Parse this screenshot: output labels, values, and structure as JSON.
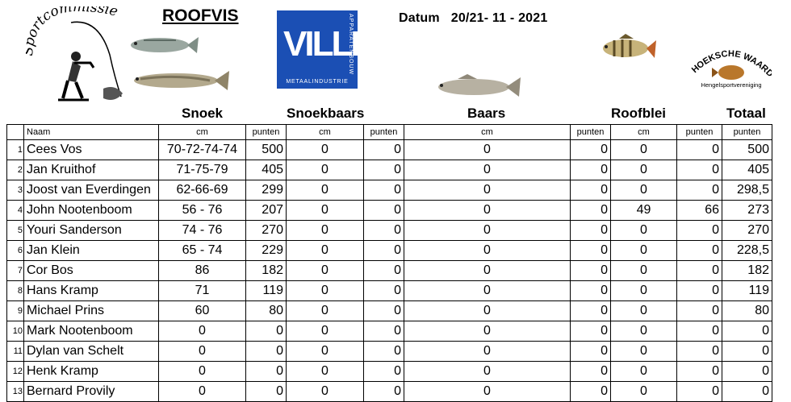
{
  "header": {
    "title": "ROOFVIS",
    "datum_label": "Datum",
    "datum_value": "20/21- 11 - 2021",
    "logo_left_text": "Sportcommissie",
    "ville_logo": {
      "name": "VILLE",
      "side_text": "APPARATENBOUW",
      "bottom_text": "METAALINDUSTRIE",
      "color": "#1b4fb4"
    },
    "hw_logo": {
      "name": "HOEKSCHE WAARD",
      "sub": "Hengelsportvereniging"
    }
  },
  "sections": {
    "snoek": "Snoek",
    "snoekbaars": "Snoekbaars",
    "baars": "Baars",
    "roofblei": "Roofblei",
    "totaal": "Totaal"
  },
  "columns": {
    "naam": "Naam",
    "cm": "cm",
    "punten": "punten"
  },
  "rows": [
    {
      "rank": "1",
      "name": "Cees Vos",
      "snoek_cm": "70-72-74-74",
      "snoek_pt": "500",
      "sb_cm": "0",
      "sb_pt": "0",
      "baars_cm": "0",
      "baars_pt": "0",
      "rb_cm": "0",
      "rb_pt": "0",
      "totaal": "500"
    },
    {
      "rank": "2",
      "name": "Jan Kruithof",
      "snoek_cm": "71-75-79",
      "snoek_pt": "405",
      "sb_cm": "0",
      "sb_pt": "0",
      "baars_cm": "0",
      "baars_pt": "0",
      "rb_cm": "0",
      "rb_pt": "0",
      "totaal": "405"
    },
    {
      "rank": "3",
      "name": "Joost van Everdingen",
      "snoek_cm": "62-66-69",
      "snoek_pt": "299",
      "sb_cm": "0",
      "sb_pt": "0",
      "baars_cm": "0",
      "baars_pt": "0",
      "rb_cm": "0",
      "rb_pt": "0",
      "totaal": "298,5"
    },
    {
      "rank": "4",
      "name": "John Nootenboom",
      "snoek_cm": "56 - 76",
      "snoek_pt": "207",
      "sb_cm": "0",
      "sb_pt": "0",
      "baars_cm": "0",
      "baars_pt": "0",
      "rb_cm": "49",
      "rb_pt": "66",
      "totaal": "273"
    },
    {
      "rank": "5",
      "name": "Youri Sanderson",
      "snoek_cm": "74 - 76",
      "snoek_pt": "270",
      "sb_cm": "0",
      "sb_pt": "0",
      "baars_cm": "0",
      "baars_pt": "0",
      "rb_cm": "0",
      "rb_pt": "0",
      "totaal": "270"
    },
    {
      "rank": "6",
      "name": "Jan Klein",
      "snoek_cm": "65 - 74",
      "snoek_pt": "229",
      "sb_cm": "0",
      "sb_pt": "0",
      "baars_cm": "0",
      "baars_pt": "0",
      "rb_cm": "0",
      "rb_pt": "0",
      "totaal": "228,5"
    },
    {
      "rank": "7",
      "name": "Cor Bos",
      "snoek_cm": "86",
      "snoek_pt": "182",
      "sb_cm": "0",
      "sb_pt": "0",
      "baars_cm": "0",
      "baars_pt": "0",
      "rb_cm": "0",
      "rb_pt": "0",
      "totaal": "182"
    },
    {
      "rank": "8",
      "name": "Hans Kramp",
      "snoek_cm": "71",
      "snoek_pt": "119",
      "sb_cm": "0",
      "sb_pt": "0",
      "baars_cm": "0",
      "baars_pt": "0",
      "rb_cm": "0",
      "rb_pt": "0",
      "totaal": "119"
    },
    {
      "rank": "9",
      "name": "Michael Prins",
      "snoek_cm": "60",
      "snoek_pt": "80",
      "sb_cm": "0",
      "sb_pt": "0",
      "baars_cm": "0",
      "baars_pt": "0",
      "rb_cm": "0",
      "rb_pt": "0",
      "totaal": "80"
    },
    {
      "rank": "10",
      "name": "Mark Nootenboom",
      "snoek_cm": "0",
      "snoek_pt": "0",
      "sb_cm": "0",
      "sb_pt": "0",
      "baars_cm": "0",
      "baars_pt": "0",
      "rb_cm": "0",
      "rb_pt": "0",
      "totaal": "0"
    },
    {
      "rank": "11",
      "name": "Dylan van Schelt",
      "snoek_cm": "0",
      "snoek_pt": "0",
      "sb_cm": "0",
      "sb_pt": "0",
      "baars_cm": "0",
      "baars_pt": "0",
      "rb_cm": "0",
      "rb_pt": "0",
      "totaal": "0"
    },
    {
      "rank": "12",
      "name": "Henk Kramp",
      "snoek_cm": "0",
      "snoek_pt": "0",
      "sb_cm": "0",
      "sb_pt": "0",
      "baars_cm": "0",
      "baars_pt": "0",
      "rb_cm": "0",
      "rb_pt": "0",
      "totaal": "0"
    },
    {
      "rank": "13",
      "name": "Bernard Provily",
      "snoek_cm": "0",
      "snoek_pt": "0",
      "sb_cm": "0",
      "sb_pt": "0",
      "baars_cm": "0",
      "baars_pt": "0",
      "rb_cm": "0",
      "rb_pt": "0",
      "totaal": "0"
    }
  ]
}
